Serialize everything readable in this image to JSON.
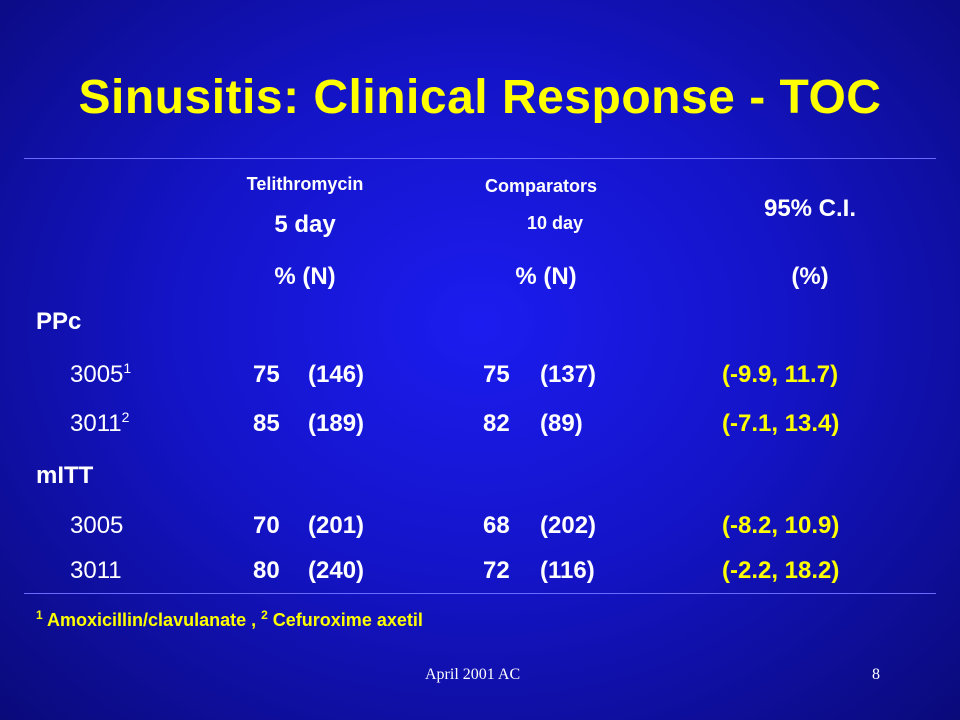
{
  "title": "Sinusitis: Clinical Response - TOC",
  "headers": {
    "telithromycin": "Telithromycin",
    "telithromycin_duration": "5 day",
    "comparators": "Comparators",
    "comparators_duration": "10 day",
    "ci": "95% C.I.",
    "pct_n": "% (N)",
    "pct_n2": "% (N)",
    "pct": "(%)"
  },
  "groups": [
    {
      "label": "PPc",
      "rows": [
        {
          "study": "3005",
          "sup": "1",
          "tel_pct": "75",
          "tel_n": "(146)",
          "comp_pct": "75",
          "comp_n": "(137)",
          "ci": "(-9.9, 11.7)"
        },
        {
          "study": "3011",
          "sup": "2",
          "tel_pct": "85",
          "tel_n": "(189)",
          "comp_pct": "82",
          "comp_n": "(89)",
          "ci": "(-7.1, 13.4)"
        }
      ]
    },
    {
      "label": "mITT",
      "rows": [
        {
          "study": "3005",
          "sup": "",
          "tel_pct": "70",
          "tel_n": "(201)",
          "comp_pct": "68",
          "comp_n": "(202)",
          "ci": "(-8.2, 10.9)"
        },
        {
          "study": "3011",
          "sup": "",
          "tel_pct": "80",
          "tel_n": "(240)",
          "comp_pct": "72",
          "comp_n": "(116)",
          "ci": "(-2.2, 18.2)"
        }
      ]
    }
  ],
  "footnote": {
    "sup1": "1",
    "text1": " Amoxicillin/clavulanate , ",
    "sup2": "2",
    "text2": " Cefuroxime axetil"
  },
  "footer": {
    "left": "April 2001 AC",
    "page": "8"
  }
}
